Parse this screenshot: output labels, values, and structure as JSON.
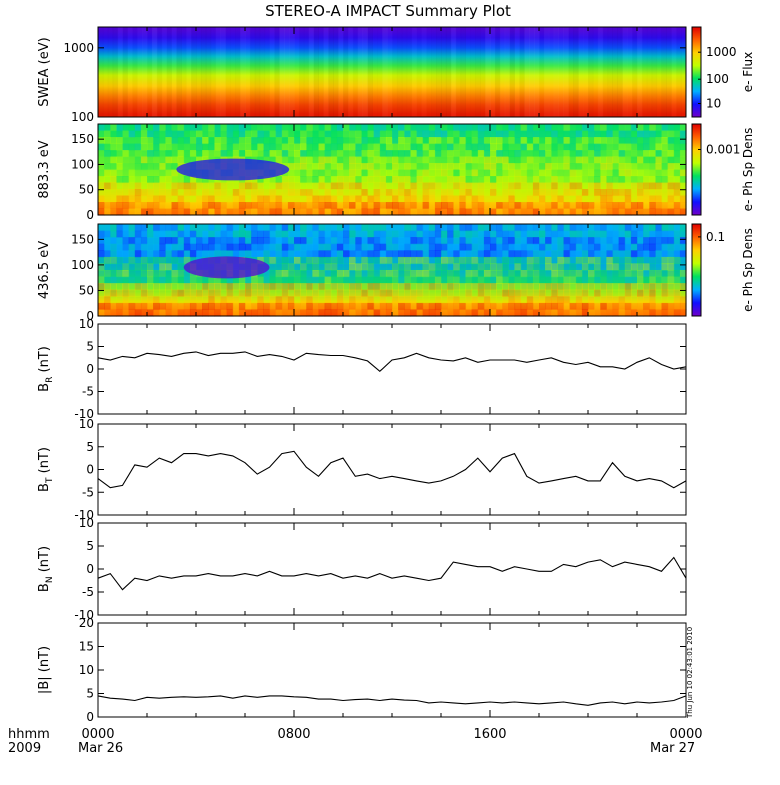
{
  "title": "STEREO-A IMPACT Summary Plot",
  "footer": {
    "hhmm_label": "hhmm",
    "year_label": "2009",
    "start_date": "Mar 26",
    "end_date": "Mar 27",
    "stamp": "Thu Jun 10 02:43:01 2010"
  },
  "colors": {
    "spectrogram_scale": [
      "#7000c8",
      "#1010ff",
      "#00b0ff",
      "#00e060",
      "#c0ff00",
      "#ffd000",
      "#ff6000",
      "#e00000"
    ],
    "trace": "#000000"
  },
  "chart_data": [
    {
      "type": "heatmap",
      "ylabel": "SWEA (eV)",
      "yscale": "log",
      "ylim": [
        100,
        2000
      ],
      "yticks": [
        "100",
        "1000"
      ],
      "xlim": [
        0,
        24
      ],
      "colorbar": {
        "label": "e- Flux",
        "scale": "log",
        "ticks": [
          "10",
          "100",
          "1000"
        ]
      },
      "energy_bands": [
        {
          "energy": 110,
          "level": 0.96
        },
        {
          "energy": 150,
          "level": 0.9
        },
        {
          "energy": 200,
          "level": 0.82
        },
        {
          "energy": 280,
          "level": 0.72
        },
        {
          "energy": 400,
          "level": 0.6
        },
        {
          "energy": 550,
          "level": 0.47
        },
        {
          "energy": 750,
          "level": 0.33
        },
        {
          "energy": 1000,
          "level": 0.2
        },
        {
          "energy": 1400,
          "level": 0.1
        },
        {
          "energy": 1800,
          "level": 0.05
        }
      ]
    },
    {
      "type": "heatmap",
      "ylabel": "883.3 eV",
      "ylim": [
        0,
        180
      ],
      "yticks": [
        "0",
        "50",
        "100",
        "150"
      ],
      "xlim": [
        0,
        24
      ],
      "colorbar": {
        "label": "e- Ph Sp Dens",
        "scale": "log",
        "ticks": [
          "0.001"
        ]
      },
      "features": [
        {
          "t_start": 3.2,
          "t_end": 7.8,
          "pitch": 90,
          "level": 0.12
        }
      ]
    },
    {
      "type": "heatmap",
      "ylabel": "436.5 eV",
      "ylim": [
        0,
        180
      ],
      "yticks": [
        "0",
        "50",
        "100",
        "150"
      ],
      "xlim": [
        0,
        24
      ],
      "colorbar": {
        "label": "e- Ph Sp Dens",
        "scale": "log",
        "ticks": [
          "0.1"
        ]
      },
      "features": [
        {
          "t_start": 3.5,
          "t_end": 7.0,
          "pitch": 95,
          "level": 0.04
        }
      ]
    },
    {
      "type": "line",
      "ylabel": "B",
      "ylabel_sub": "R",
      "ylabel_unit": " (nT)",
      "ylim": [
        -10,
        10
      ],
      "yticks": [
        "-10",
        "-5",
        "0",
        "5",
        "10"
      ],
      "xlim": [
        0,
        24
      ],
      "x": [
        0.0,
        0.5,
        1.0,
        1.5,
        2.0,
        2.5,
        3.0,
        3.5,
        4.0,
        4.5,
        5.0,
        5.5,
        6.0,
        6.5,
        7.0,
        7.5,
        8.0,
        8.5,
        9.0,
        9.5,
        10.0,
        10.5,
        11.0,
        11.5,
        12.0,
        12.5,
        13.0,
        13.5,
        14.0,
        14.5,
        15.0,
        15.5,
        16.0,
        16.5,
        17.0,
        17.5,
        18.0,
        18.5,
        19.0,
        19.5,
        20.0,
        20.5,
        21.0,
        21.5,
        22.0,
        22.5,
        23.0,
        23.5,
        24.0
      ],
      "y": [
        2.5,
        2.0,
        2.8,
        2.5,
        3.5,
        3.2,
        2.8,
        3.5,
        3.8,
        3.0,
        3.5,
        3.5,
        3.8,
        2.8,
        3.2,
        2.8,
        2.0,
        3.5,
        3.2,
        3.0,
        3.0,
        2.5,
        1.8,
        -0.5,
        2.0,
        2.5,
        3.5,
        2.5,
        2.0,
        1.8,
        2.5,
        1.5,
        2.0,
        2.0,
        2.0,
        1.5,
        2.0,
        2.5,
        1.5,
        1.0,
        1.5,
        0.5,
        0.5,
        0.0,
        1.5,
        2.5,
        1.0,
        0.0,
        0.5
      ]
    },
    {
      "type": "line",
      "ylabel": "B",
      "ylabel_sub": "T",
      "ylabel_unit": " (nT)",
      "ylim": [
        -10,
        10
      ],
      "yticks": [
        "-10",
        "-5",
        "0",
        "5",
        "10"
      ],
      "xlim": [
        0,
        24
      ],
      "x": [
        0.0,
        0.5,
        1.0,
        1.5,
        2.0,
        2.5,
        3.0,
        3.5,
        4.0,
        4.5,
        5.0,
        5.5,
        6.0,
        6.5,
        7.0,
        7.5,
        8.0,
        8.5,
        9.0,
        9.5,
        10.0,
        10.5,
        11.0,
        11.5,
        12.0,
        12.5,
        13.0,
        13.5,
        14.0,
        14.5,
        15.0,
        15.5,
        16.0,
        16.5,
        17.0,
        17.5,
        18.0,
        18.5,
        19.0,
        19.5,
        20.0,
        20.5,
        21.0,
        21.5,
        22.0,
        22.5,
        23.0,
        23.5,
        24.0
      ],
      "y": [
        -2.0,
        -4.0,
        -3.5,
        1.0,
        0.5,
        2.5,
        1.5,
        3.5,
        3.5,
        3.0,
        3.5,
        3.0,
        1.5,
        -1.0,
        0.5,
        3.5,
        4.0,
        0.5,
        -1.5,
        1.5,
        2.5,
        -1.5,
        -1.0,
        -2.0,
        -1.5,
        -2.0,
        -2.5,
        -3.0,
        -2.5,
        -1.5,
        0.0,
        2.5,
        -0.5,
        2.5,
        3.5,
        -1.5,
        -3.0,
        -2.5,
        -2.0,
        -1.5,
        -2.5,
        -2.5,
        1.5,
        -1.5,
        -2.5,
        -2.0,
        -2.5,
        -4.0,
        -2.5
      ]
    },
    {
      "type": "line",
      "ylabel": "B",
      "ylabel_sub": "N",
      "ylabel_unit": " (nT)",
      "ylim": [
        -10,
        10
      ],
      "yticks": [
        "-10",
        "-5",
        "0",
        "5",
        "10"
      ],
      "xlim": [
        0,
        24
      ],
      "x": [
        0.0,
        0.5,
        1.0,
        1.5,
        2.0,
        2.5,
        3.0,
        3.5,
        4.0,
        4.5,
        5.0,
        5.5,
        6.0,
        6.5,
        7.0,
        7.5,
        8.0,
        8.5,
        9.0,
        9.5,
        10.0,
        10.5,
        11.0,
        11.5,
        12.0,
        12.5,
        13.0,
        13.5,
        14.0,
        14.5,
        15.0,
        15.5,
        16.0,
        16.5,
        17.0,
        17.5,
        18.0,
        18.5,
        19.0,
        19.5,
        20.0,
        20.5,
        21.0,
        21.5,
        22.0,
        22.5,
        23.0,
        23.5,
        24.0
      ],
      "y": [
        -2.0,
        -1.0,
        -4.5,
        -2.0,
        -2.5,
        -1.5,
        -2.0,
        -1.5,
        -1.5,
        -1.0,
        -1.5,
        -1.5,
        -1.0,
        -1.5,
        -0.5,
        -1.5,
        -1.5,
        -1.0,
        -1.5,
        -1.0,
        -2.0,
        -1.5,
        -2.0,
        -1.0,
        -2.0,
        -1.5,
        -2.0,
        -2.5,
        -2.0,
        1.5,
        1.0,
        0.5,
        0.5,
        -0.5,
        0.5,
        0.0,
        -0.5,
        -0.5,
        1.0,
        0.5,
        1.5,
        2.0,
        0.5,
        1.5,
        1.0,
        0.5,
        -0.5,
        2.5,
        -2.0
      ]
    },
    {
      "type": "line",
      "ylabel": "|B| (nT)",
      "ylim": [
        0,
        20
      ],
      "yticks": [
        "0",
        "5",
        "10",
        "15",
        "20"
      ],
      "xlim": [
        0,
        24
      ],
      "xticks": [
        "0000",
        "0800",
        "1600",
        "0000"
      ],
      "x": [
        0.0,
        0.5,
        1.0,
        1.5,
        2.0,
        2.5,
        3.0,
        3.5,
        4.0,
        4.5,
        5.0,
        5.5,
        6.0,
        6.5,
        7.0,
        7.5,
        8.0,
        8.5,
        9.0,
        9.5,
        10.0,
        10.5,
        11.0,
        11.5,
        12.0,
        12.5,
        13.0,
        13.5,
        14.0,
        14.5,
        15.0,
        15.5,
        16.0,
        16.5,
        17.0,
        17.5,
        18.0,
        18.5,
        19.0,
        19.5,
        20.0,
        20.5,
        21.0,
        21.5,
        22.0,
        22.5,
        23.0,
        23.5,
        24.0
      ],
      "y": [
        4.5,
        4.0,
        3.8,
        3.5,
        4.2,
        4.0,
        4.2,
        4.3,
        4.2,
        4.3,
        4.5,
        4.0,
        4.5,
        4.2,
        4.5,
        4.5,
        4.3,
        4.2,
        3.8,
        3.8,
        3.5,
        3.7,
        3.8,
        3.5,
        3.8,
        3.6,
        3.5,
        3.0,
        3.2,
        3.0,
        2.8,
        3.0,
        3.2,
        3.0,
        3.2,
        3.0,
        2.8,
        3.0,
        3.2,
        2.8,
        2.5,
        3.0,
        3.2,
        2.8,
        3.2,
        3.0,
        3.2,
        3.5,
        4.5
      ]
    }
  ]
}
